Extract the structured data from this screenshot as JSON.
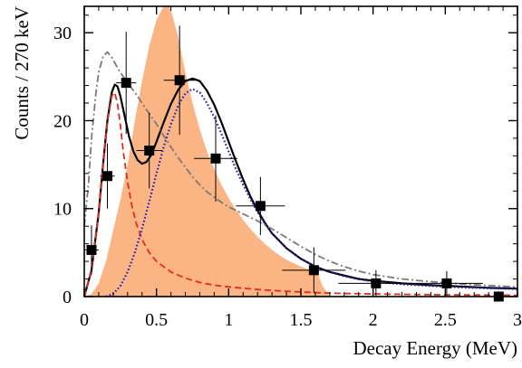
{
  "chart_data": {
    "type": "line",
    "title": "",
    "xlabel": "Decay Energy (MeV)",
    "ylabel": "Counts / 270 keV",
    "xlim": [
      0,
      3
    ],
    "ylim": [
      0,
      33
    ],
    "xticks": [
      0,
      0.5,
      1,
      1.5,
      2,
      2.5,
      3
    ],
    "xtick_labels": [
      "0",
      "0.5",
      "1",
      "1.5",
      "2",
      "2.5",
      "3"
    ],
    "yticks": [
      0,
      10,
      20,
      30
    ],
    "ytick_labels": [
      "0",
      "10",
      "20",
      "30"
    ],
    "grid": false,
    "legend": "none",
    "data_points": {
      "x": [
        0.05,
        0.16,
        0.29,
        0.45,
        0.66,
        0.91,
        1.22,
        1.59,
        2.02,
        2.51,
        2.87
      ],
      "y": [
        5.3,
        13.7,
        24.3,
        16.6,
        24.6,
        15.7,
        10.3,
        3.0,
        1.5,
        1.5,
        0
      ],
      "xerr": [
        0.05,
        0.05,
        0.07,
        0.09,
        0.11,
        0.15,
        0.17,
        0.22,
        0.26,
        0.25,
        0
      ],
      "yerr": [
        2.8,
        3.7,
        5.8,
        4.3,
        6.2,
        4.9,
        3.3,
        2.6,
        1.5,
        1.4,
        0.6
      ]
    },
    "series": [
      {
        "style": "filled",
        "color": "#fbb585",
        "x": [
          0.0,
          0.05,
          0.1,
          0.15,
          0.2,
          0.25,
          0.3,
          0.35,
          0.4,
          0.45,
          0.5,
          0.55,
          0.58,
          0.6,
          0.65,
          0.7,
          0.75,
          0.8,
          0.85,
          0.9,
          0.95,
          1.0,
          1.05,
          1.1,
          1.15,
          1.2,
          1.25,
          1.3,
          1.35,
          1.4,
          1.45,
          1.5,
          1.55,
          1.6,
          1.62,
          1.65,
          1.7
        ],
        "values": [
          0.0,
          0.3,
          1.5,
          4.0,
          7.5,
          11.0,
          15.0,
          20.0,
          24.5,
          28.5,
          31.5,
          33.0,
          33.1,
          32.6,
          29.5,
          25.5,
          22.0,
          19.0,
          16.5,
          14.5,
          12.7,
          11.2,
          9.9,
          8.7,
          7.7,
          6.8,
          6.0,
          5.3,
          4.7,
          4.2,
          3.8,
          3.4,
          3.1,
          2.8,
          2.5,
          1.2,
          0.0
        ]
      },
      {
        "style": "solid",
        "color": "#000000",
        "x": [
          0.0,
          0.05,
          0.1,
          0.13,
          0.16,
          0.19,
          0.21,
          0.23,
          0.25,
          0.28,
          0.31,
          0.34,
          0.37,
          0.4,
          0.43,
          0.46,
          0.5,
          0.55,
          0.6,
          0.65,
          0.7,
          0.75,
          0.8,
          0.85,
          0.9,
          0.95,
          1.0,
          1.05,
          1.1,
          1.15,
          1.2,
          1.25,
          1.3,
          1.4,
          1.5,
          1.6,
          1.7,
          1.8,
          1.9,
          2.0,
          2.2,
          2.4,
          2.6,
          2.8,
          3.0
        ],
        "values": [
          0.0,
          3.0,
          9.5,
          15.0,
          20.0,
          23.2,
          24.1,
          23.9,
          22.8,
          20.5,
          18.2,
          16.5,
          15.5,
          15.1,
          15.3,
          16.0,
          17.6,
          19.8,
          21.9,
          23.5,
          24.5,
          24.8,
          24.5,
          23.4,
          21.8,
          19.8,
          17.6,
          15.4,
          13.3,
          11.4,
          9.8,
          8.4,
          7.2,
          5.5,
          4.3,
          3.4,
          2.8,
          2.4,
          2.0,
          1.8,
          1.5,
          1.3,
          1.15,
          1.0,
          0.9
        ]
      },
      {
        "style": "dashed",
        "color": "#e8281c",
        "x": [
          0.0,
          0.05,
          0.1,
          0.13,
          0.16,
          0.19,
          0.21,
          0.23,
          0.25,
          0.27,
          0.3,
          0.33,
          0.36,
          0.4,
          0.45,
          0.5,
          0.6,
          0.7,
          0.8,
          0.9,
          1.0,
          1.2,
          1.4,
          1.6,
          1.8,
          2.0,
          2.5,
          3.0
        ],
        "values": [
          0.0,
          3.0,
          9.5,
          15.0,
          19.8,
          22.8,
          23.2,
          22.0,
          19.5,
          16.5,
          13.0,
          10.3,
          8.3,
          6.5,
          5.0,
          4.0,
          2.8,
          2.1,
          1.6,
          1.3,
          1.1,
          0.8,
          0.6,
          0.45,
          0.35,
          0.3,
          0.2,
          0.15
        ]
      },
      {
        "style": "dotted",
        "color": "#1f1fbf",
        "x": [
          0.15,
          0.2,
          0.25,
          0.3,
          0.35,
          0.4,
          0.45,
          0.5,
          0.55,
          0.6,
          0.65,
          0.7,
          0.75,
          0.8,
          0.85,
          0.9,
          0.95,
          1.0,
          1.05,
          1.1,
          1.15,
          1.2,
          1.25,
          1.3,
          1.4,
          1.5,
          1.6,
          1.7,
          1.8,
          1.9,
          2.0,
          2.2,
          2.4,
          2.6,
          2.8,
          3.0
        ],
        "values": [
          0.0,
          0.3,
          1.2,
          2.8,
          5.0,
          7.7,
          10.8,
          14.0,
          17.0,
          19.6,
          21.7,
          23.1,
          23.6,
          23.2,
          22.0,
          20.4,
          18.5,
          16.5,
          14.5,
          12.7,
          11.1,
          9.6,
          8.3,
          7.2,
          5.5,
          4.3,
          3.4,
          2.8,
          2.3,
          2.0,
          1.7,
          1.4,
          1.2,
          1.05,
          0.95,
          0.85
        ]
      },
      {
        "style": "dashdot",
        "color": "#7a7a7a",
        "x": [
          0.0,
          0.03,
          0.05,
          0.08,
          0.1,
          0.13,
          0.16,
          0.19,
          0.22,
          0.25,
          0.3,
          0.35,
          0.4,
          0.45,
          0.5,
          0.55,
          0.6,
          0.65,
          0.7,
          0.75,
          0.8,
          0.85,
          0.9,
          0.95,
          1.0,
          1.1,
          1.2,
          1.3,
          1.4,
          1.5,
          1.6,
          1.7,
          1.8,
          1.9,
          2.0,
          2.2,
          2.4,
          2.6,
          2.8,
          3.0
        ],
        "values": [
          8.0,
          13.0,
          18.0,
          23.0,
          25.5,
          27.3,
          27.8,
          27.2,
          26.3,
          25.5,
          24.3,
          23.2,
          22.0,
          20.8,
          19.6,
          18.3,
          17.0,
          15.8,
          14.7,
          13.6,
          12.7,
          11.9,
          11.3,
          10.7,
          10.2,
          9.4,
          8.6,
          7.7,
          6.7,
          5.7,
          4.8,
          4.0,
          3.4,
          2.9,
          2.5,
          2.0,
          1.7,
          1.45,
          1.25,
          1.1
        ]
      }
    ]
  }
}
